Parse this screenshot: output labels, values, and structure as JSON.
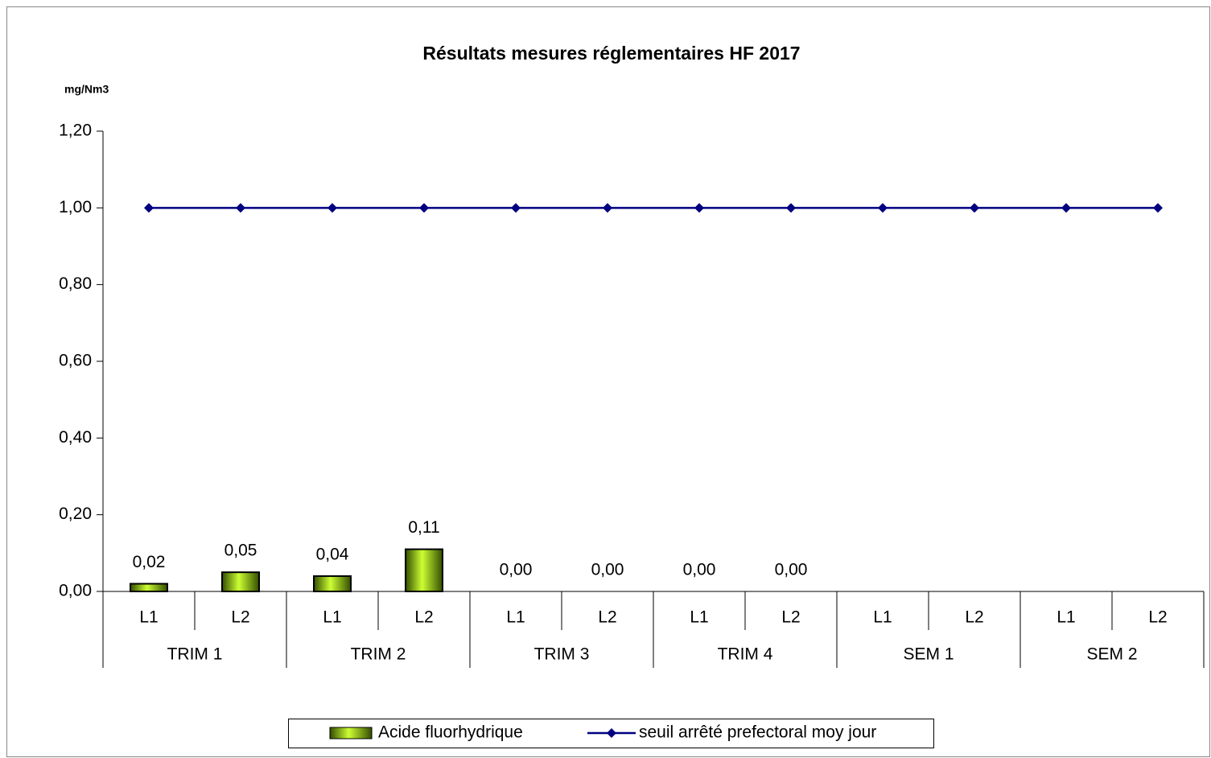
{
  "chart_data": {
    "type": "bar",
    "title": "Résultats mesures réglementaires HF 2017",
    "y_axis_label": "mg/Nm3",
    "groups": [
      {
        "label": "TRIM 1",
        "categories": [
          "L1",
          "L2"
        ]
      },
      {
        "label": "TRIM 2",
        "categories": [
          "L1",
          "L2"
        ]
      },
      {
        "label": "TRIM 3",
        "categories": [
          "L1",
          "L2"
        ]
      },
      {
        "label": "TRIM 4",
        "categories": [
          "L1",
          "L2"
        ]
      },
      {
        "label": "SEM 1",
        "categories": [
          "L1",
          "L2"
        ]
      },
      {
        "label": "SEM 2",
        "categories": [
          "L1",
          "L2"
        ]
      }
    ],
    "series": [
      {
        "name": "Acide fluorhydrique",
        "type": "bar",
        "color": "#99cc00",
        "values": [
          0.02,
          0.05,
          0.04,
          0.11,
          0,
          0,
          0,
          0,
          null,
          null,
          null,
          null
        ],
        "value_labels": [
          "0,02",
          "0,05",
          "0,04",
          "0,11",
          "0,00",
          "0,00",
          "0,00",
          "0,00",
          null,
          null,
          null,
          null
        ]
      },
      {
        "name": "seuil arrêté prefectoral moy jour",
        "type": "line",
        "color": "#000080",
        "values": [
          1,
          1,
          1,
          1,
          1,
          1,
          1,
          1,
          1,
          1,
          1,
          1
        ]
      }
    ],
    "ylim": [
      0,
      1.2
    ],
    "yticks": [
      {
        "value": 0,
        "label": "0,00"
      },
      {
        "value": 0.2,
        "label": "0,20"
      },
      {
        "value": 0.4,
        "label": "0,40"
      },
      {
        "value": 0.6,
        "label": "0,60"
      },
      {
        "value": 0.8,
        "label": "0,80"
      },
      {
        "value": 1,
        "label": "1,00"
      },
      {
        "value": 1.2,
        "label": "1,20"
      }
    ],
    "grid": false,
    "legend": "bottom"
  }
}
